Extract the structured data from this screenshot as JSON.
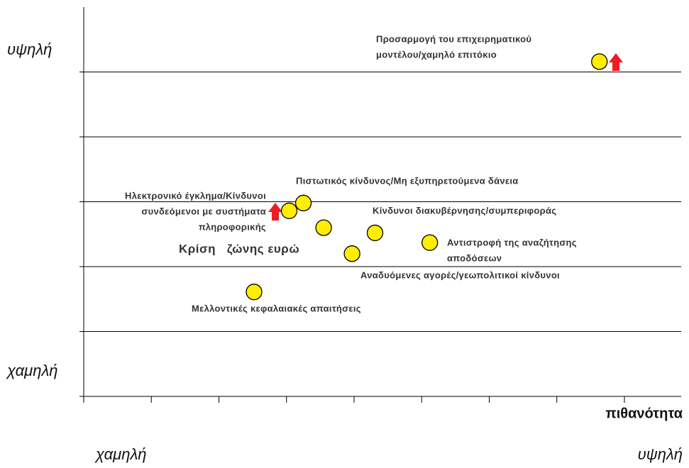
{
  "chart_data": {
    "type": "scatter",
    "y_axis_labels": {
      "high": "υψηλή",
      "low": "χαμηλή"
    },
    "x_axis_label": "πιθανότητα",
    "x_axis_labels": {
      "low": "χαμηλή",
      "high": "υψηλή"
    },
    "xlim": [
      0,
      8.9
    ],
    "xticks": [
      0,
      1,
      2,
      3,
      4,
      5,
      6,
      7,
      8
    ],
    "ylim": [
      0,
      6
    ],
    "yticks": [
      0,
      1,
      2,
      3,
      4,
      5
    ],
    "grid": true,
    "series": [
      {
        "color": "#ffee00",
        "x": [
          7.63,
          3.25,
          3.04,
          3.55,
          4.31,
          3.97,
          5.12,
          2.52
        ],
        "values": [
          5.16,
          2.98,
          2.86,
          2.6,
          2.52,
          2.2,
          2.37,
          1.61
        ]
      }
    ],
    "annotations": [
      {
        "lines": [
          "Προσαρμογή του επιχειρηματικού",
          "μοντέλου/χαμηλό επιτόκιο"
        ]
      },
      {
        "lines": [
          "Πιστωτικός κίνδυνος/Μη εξυπηρετούμενα δάνεια"
        ]
      },
      {
        "lines": [
          "Ηλεκτρονικό έγκλημα/Κίνδυνοι",
          "συνδεόμενοι με συστήματα",
          "πληροφορικής"
        ]
      },
      {
        "lines": [
          "Κίνδυνοι διακυβέρνησης/συμπεριφοράς"
        ]
      },
      {
        "lines": [
          "Κρίση   ζώνης ευρώ"
        ]
      },
      {
        "lines": [
          "Αντιστροφή της αναζήτησης",
          "αποδόσεων"
        ]
      },
      {
        "lines": [
          "Αναδυόμενες αγορές/γεωπολιτικοί κίνδυνοι"
        ]
      },
      {
        "lines": [
          "Μελλοντικές κεφαλαιακές απαιτήσεις"
        ]
      }
    ]
  }
}
